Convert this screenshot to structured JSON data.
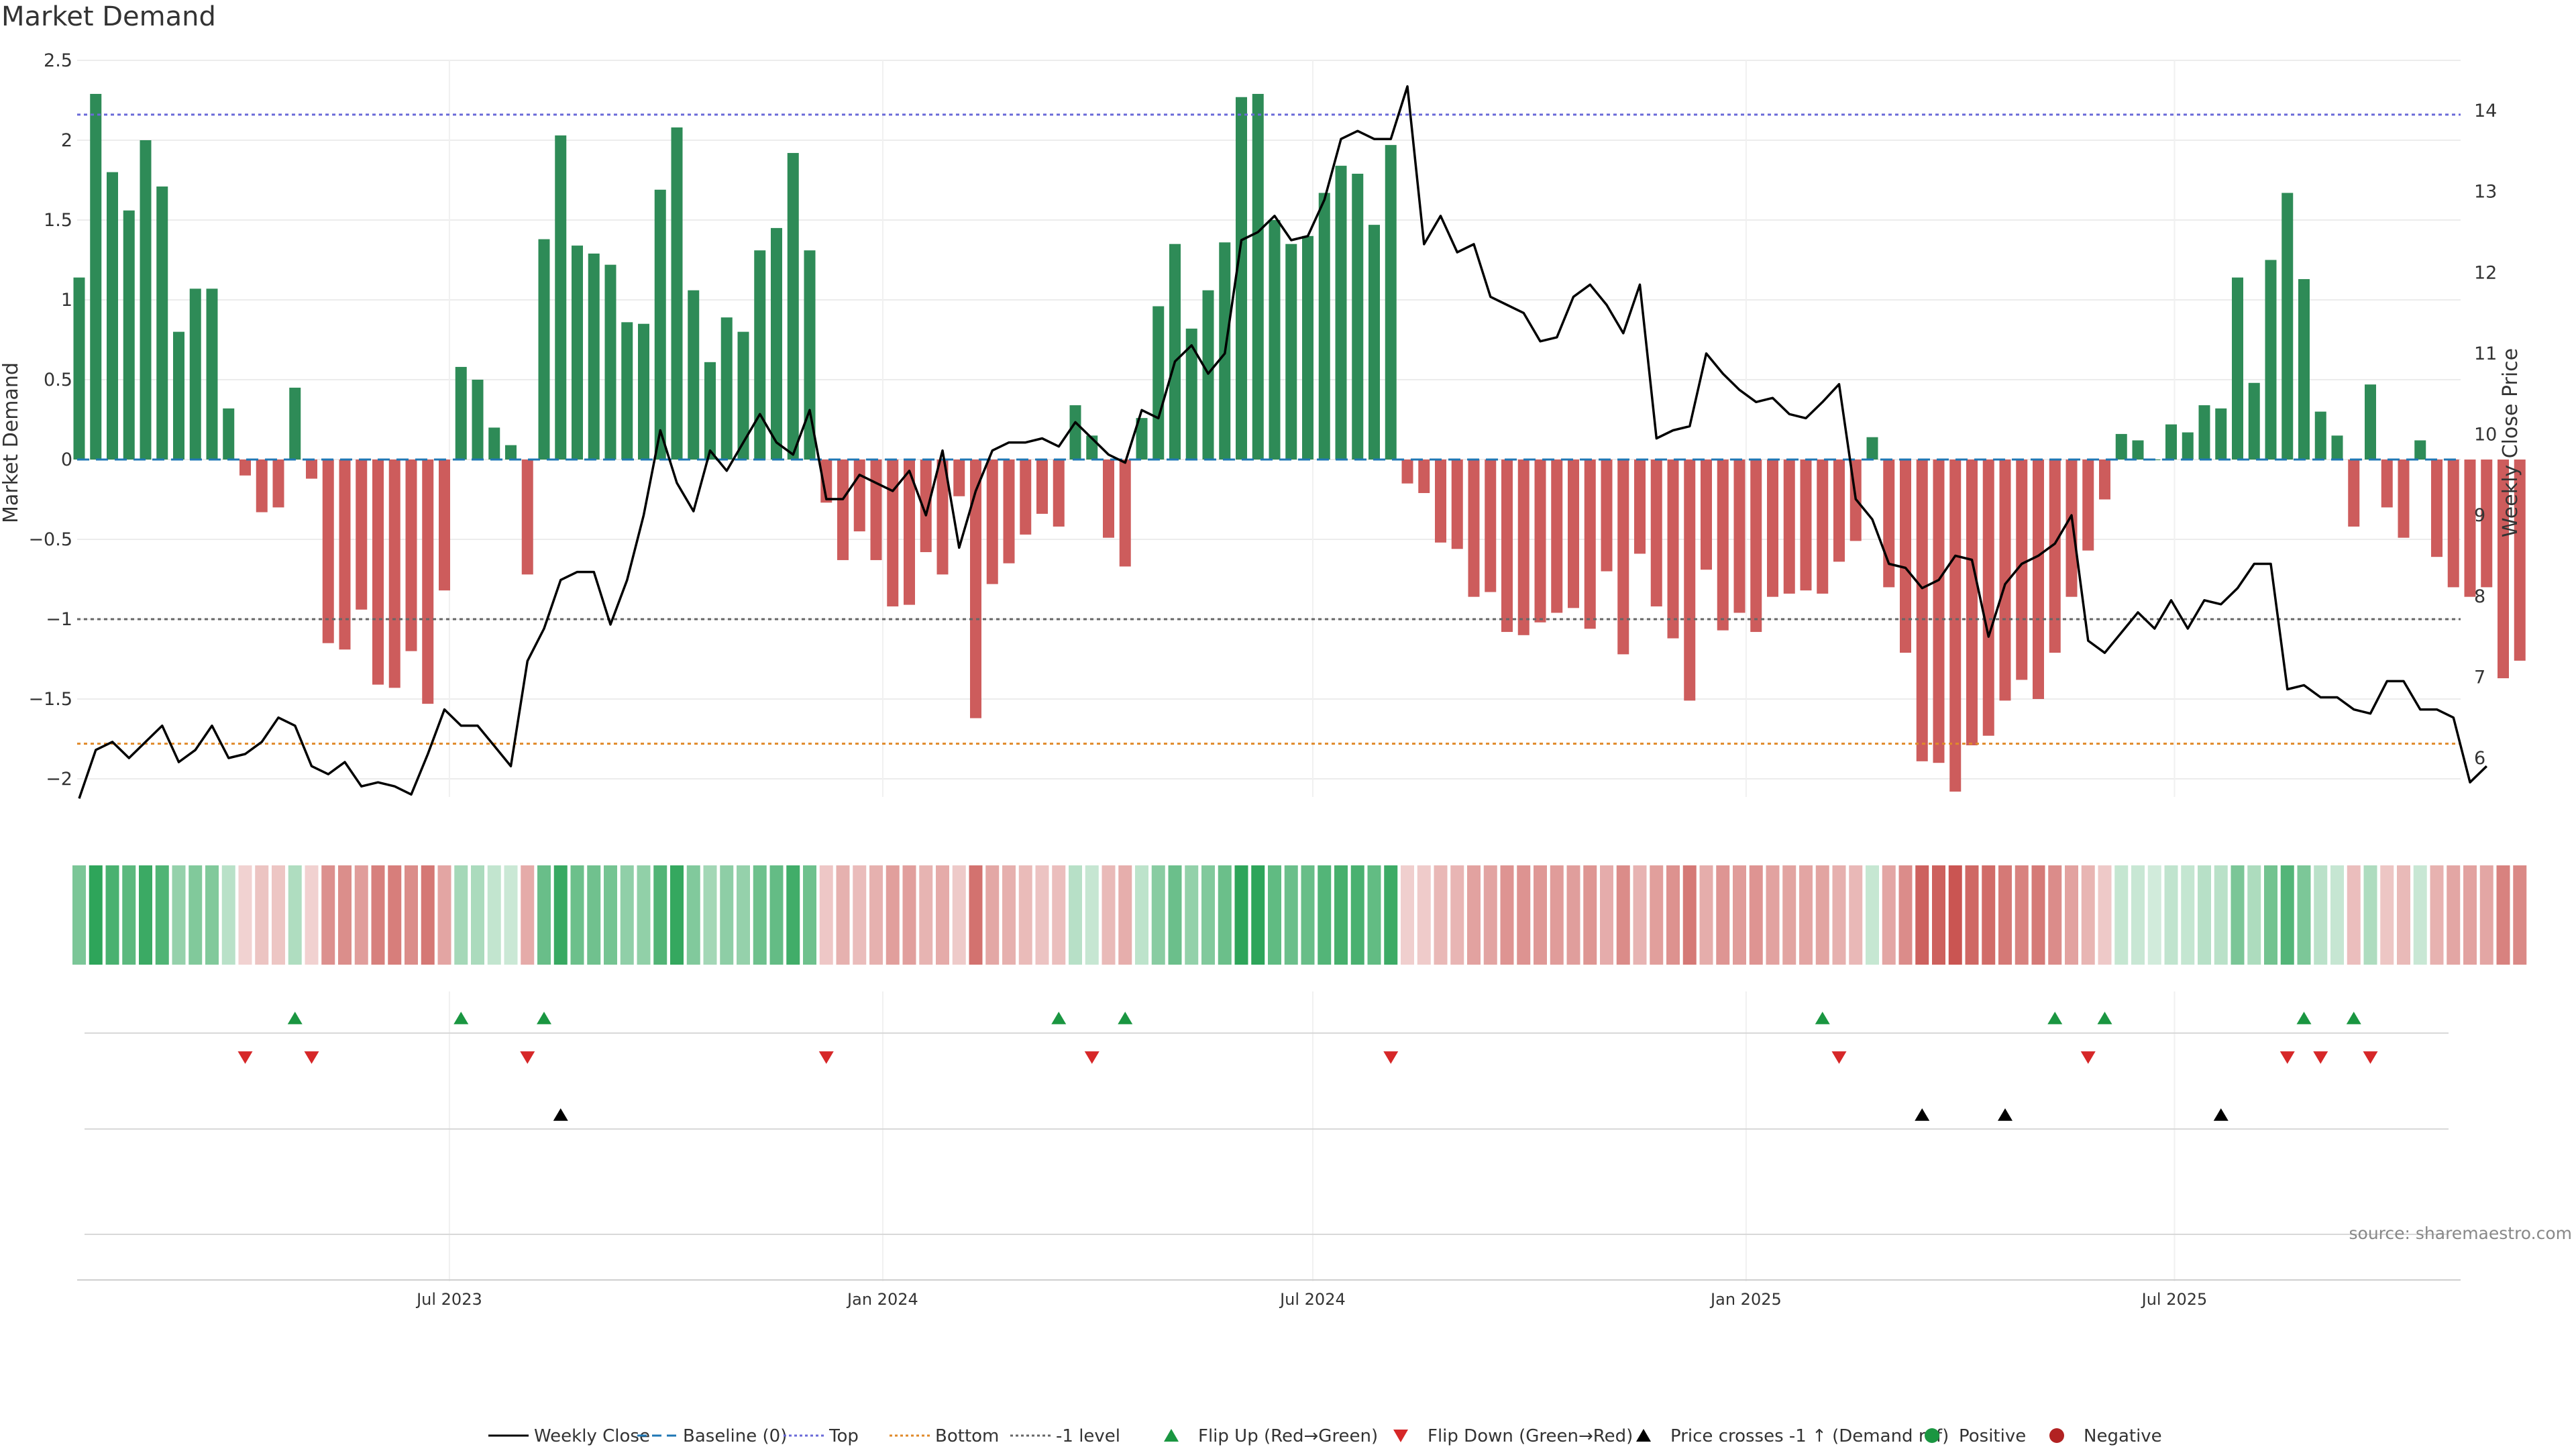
{
  "title": "Market Demand",
  "source": "source: sharemaestro.com",
  "colors": {
    "pos_bar": "#2e8b57",
    "neg_bar": "#cd5c5c",
    "price": "#000000",
    "top": "#6a6ad8",
    "bottom": "#e08a2a",
    "minus1": "#666666",
    "baseline": "#1f77b4",
    "flip_up": "#1a9641",
    "flip_down": "#d62728",
    "cross": "#000000",
    "positive": "#1a9641",
    "negative": "#b22222"
  },
  "legend": [
    {
      "label": "Weekly Close",
      "kind": "solid",
      "color": "#000000"
    },
    {
      "label": "Baseline (0)",
      "kind": "dashed",
      "color": "#1f77b4"
    },
    {
      "label": "Top",
      "kind": "dotted",
      "color": "#6a6ad8"
    },
    {
      "label": "Bottom",
      "kind": "dotted",
      "color": "#e08a2a"
    },
    {
      "label": "-1 level",
      "kind": "dotted",
      "color": "#666666"
    },
    {
      "label": "Flip Up (Red→Green)",
      "kind": "tri-up",
      "color": "#1a9641"
    },
    {
      "label": "Flip Down (Green→Red)",
      "kind": "tri-down",
      "color": "#d62728"
    },
    {
      "label": "Price crosses -1 ↑ (Demand ref)",
      "kind": "tri-up",
      "color": "#000000"
    },
    {
      "label": "Positive",
      "kind": "dot",
      "color": "#1a9641"
    },
    {
      "label": "Negative",
      "kind": "dot",
      "color": "#b22222"
    }
  ],
  "chart_data": {
    "type": "bar",
    "title": "Market Demand",
    "ylabel": "Market Demand",
    "y2label": "Weekly Close Price",
    "ylim": [
      -2.35,
      2.5
    ],
    "y2lim": [
      5.5,
      14.5
    ],
    "yticks": [
      2.5,
      2,
      1.5,
      1,
      0.5,
      0,
      -0.5,
      -1,
      -1.5,
      -2
    ],
    "ytick_labels": [
      "2.5",
      "2",
      "1.5",
      "1",
      "0.5",
      "0",
      "−0.5",
      "−1",
      "−1.5",
      "−2"
    ],
    "y2ticks": [
      14,
      13,
      12,
      11,
      10,
      9,
      8,
      7,
      6
    ],
    "x_week_range": [
      0,
      143
    ],
    "xticks": [
      {
        "label": "Jul 2023",
        "week": 22.3
      },
      {
        "label": "Jan 2024",
        "week": 48.4
      },
      {
        "label": "Jul 2024",
        "week": 74.3
      },
      {
        "label": "Jan 2025",
        "week": 100.4
      },
      {
        "label": "Jul 2025",
        "week": 126.2
      }
    ],
    "reference_lines": {
      "top": 2.16,
      "bottom": -1.78,
      "minus_one": -1,
      "baseline": 0
    },
    "demand": [
      1.14,
      2.29,
      1.8,
      1.56,
      2.0,
      1.71,
      0.8,
      1.07,
      1.07,
      0.32,
      -0.1,
      -0.33,
      -0.3,
      0.45,
      -0.12,
      -1.15,
      -1.19,
      -0.94,
      -1.41,
      -1.43,
      -1.2,
      -1.53,
      -0.82,
      0.58,
      0.5,
      0.2,
      0.09,
      -0.72,
      1.38,
      2.03,
      1.34,
      1.29,
      1.22,
      0.86,
      0.85,
      1.69,
      2.08,
      1.06,
      0.61,
      0.89,
      0.8,
      1.31,
      1.45,
      1.92,
      1.31,
      -0.27,
      -0.63,
      -0.45,
      -0.63,
      -0.92,
      -0.91,
      -0.58,
      -0.72,
      -0.23,
      -1.62,
      -0.78,
      -0.65,
      -0.47,
      -0.34,
      -0.42,
      0.34,
      0.15,
      -0.49,
      -0.67,
      0.26,
      0.96,
      1.35,
      0.82,
      1.06,
      1.36,
      2.27,
      2.29,
      1.5,
      1.35,
      1.4,
      1.67,
      1.84,
      1.79,
      1.47,
      1.97,
      -0.15,
      -0.21,
      -0.52,
      -0.56,
      -0.86,
      -0.83,
      -1.08,
      -1.1,
      -1.02,
      -0.96,
      -0.93,
      -1.06,
      -0.7,
      -1.22,
      -0.59,
      -0.92,
      -1.12,
      -1.51,
      -0.69,
      -1.07,
      -0.96,
      -1.08,
      -0.86,
      -0.84,
      -0.82,
      -0.84,
      -0.64,
      -0.51,
      0.14,
      -0.8,
      -1.21,
      -1.89,
      -1.9,
      -2.08,
      -1.79,
      -1.73,
      -1.51,
      -1.38,
      -1.5,
      -1.21,
      -0.86,
      -0.57,
      -0.25,
      0.16,
      0.12,
      0.0,
      0.22,
      0.17,
      0.34,
      0.32,
      1.14,
      0.48,
      1.25,
      1.67,
      1.13,
      0.3,
      0.15,
      -0.42,
      0.47,
      -0.3,
      -0.49,
      0.12,
      -0.61,
      -0.8,
      -0.86,
      -0.8,
      -1.37,
      -1.26
    ],
    "price": [
      5.5,
      6.1,
      6.2,
      6.0,
      6.2,
      6.4,
      5.95,
      6.1,
      6.4,
      6.0,
      6.05,
      6.2,
      6.5,
      6.4,
      5.9,
      5.8,
      5.95,
      5.65,
      5.7,
      5.65,
      5.55,
      6.05,
      6.6,
      6.4,
      6.4,
      6.15,
      5.9,
      7.2,
      7.6,
      8.2,
      8.3,
      8.3,
      7.65,
      8.2,
      9.0,
      10.05,
      9.4,
      9.05,
      9.8,
      9.55,
      9.9,
      10.25,
      9.9,
      9.75,
      10.3,
      9.2,
      9.2,
      9.5,
      9.4,
      9.3,
      9.55,
      9.0,
      9.8,
      8.6,
      9.3,
      9.8,
      9.9,
      9.9,
      9.95,
      9.85,
      10.15,
      9.95,
      9.75,
      9.65,
      10.3,
      10.2,
      10.9,
      11.1,
      10.75,
      11.0,
      12.4,
      12.5,
      12.7,
      12.4,
      12.45,
      12.9,
      13.65,
      13.75,
      13.65,
      13.65,
      14.3,
      12.35,
      12.7,
      12.25,
      12.35,
      11.7,
      11.6,
      11.5,
      11.15,
      11.2,
      11.7,
      11.85,
      11.6,
      11.25,
      11.85,
      9.95,
      10.05,
      10.1,
      11.0,
      10.75,
      10.55,
      10.4,
      10.45,
      10.25,
      10.2,
      10.4,
      10.62,
      9.2,
      8.95,
      8.4,
      8.35,
      8.1,
      8.2,
      8.5,
      8.45,
      7.5,
      8.15,
      8.4,
      8.5,
      8.65,
      9.0,
      7.45,
      7.3,
      7.55,
      7.8,
      7.6,
      7.95,
      7.6,
      7.95,
      7.9,
      8.1,
      8.4,
      8.4,
      6.85,
      6.9,
      6.75,
      6.75,
      6.6,
      6.55,
      6.95,
      6.95,
      6.6,
      6.6,
      6.5,
      5.7,
      5.9
    ],
    "flip_up_weeks": [
      13,
      23,
      28,
      59,
      63,
      105,
      119,
      122,
      134,
      137
    ],
    "flip_down_weeks": [
      10,
      14,
      27,
      45,
      61,
      79,
      106,
      121,
      133,
      135,
      138
    ],
    "price_cross_weeks": [
      29,
      111,
      116,
      129
    ]
  }
}
